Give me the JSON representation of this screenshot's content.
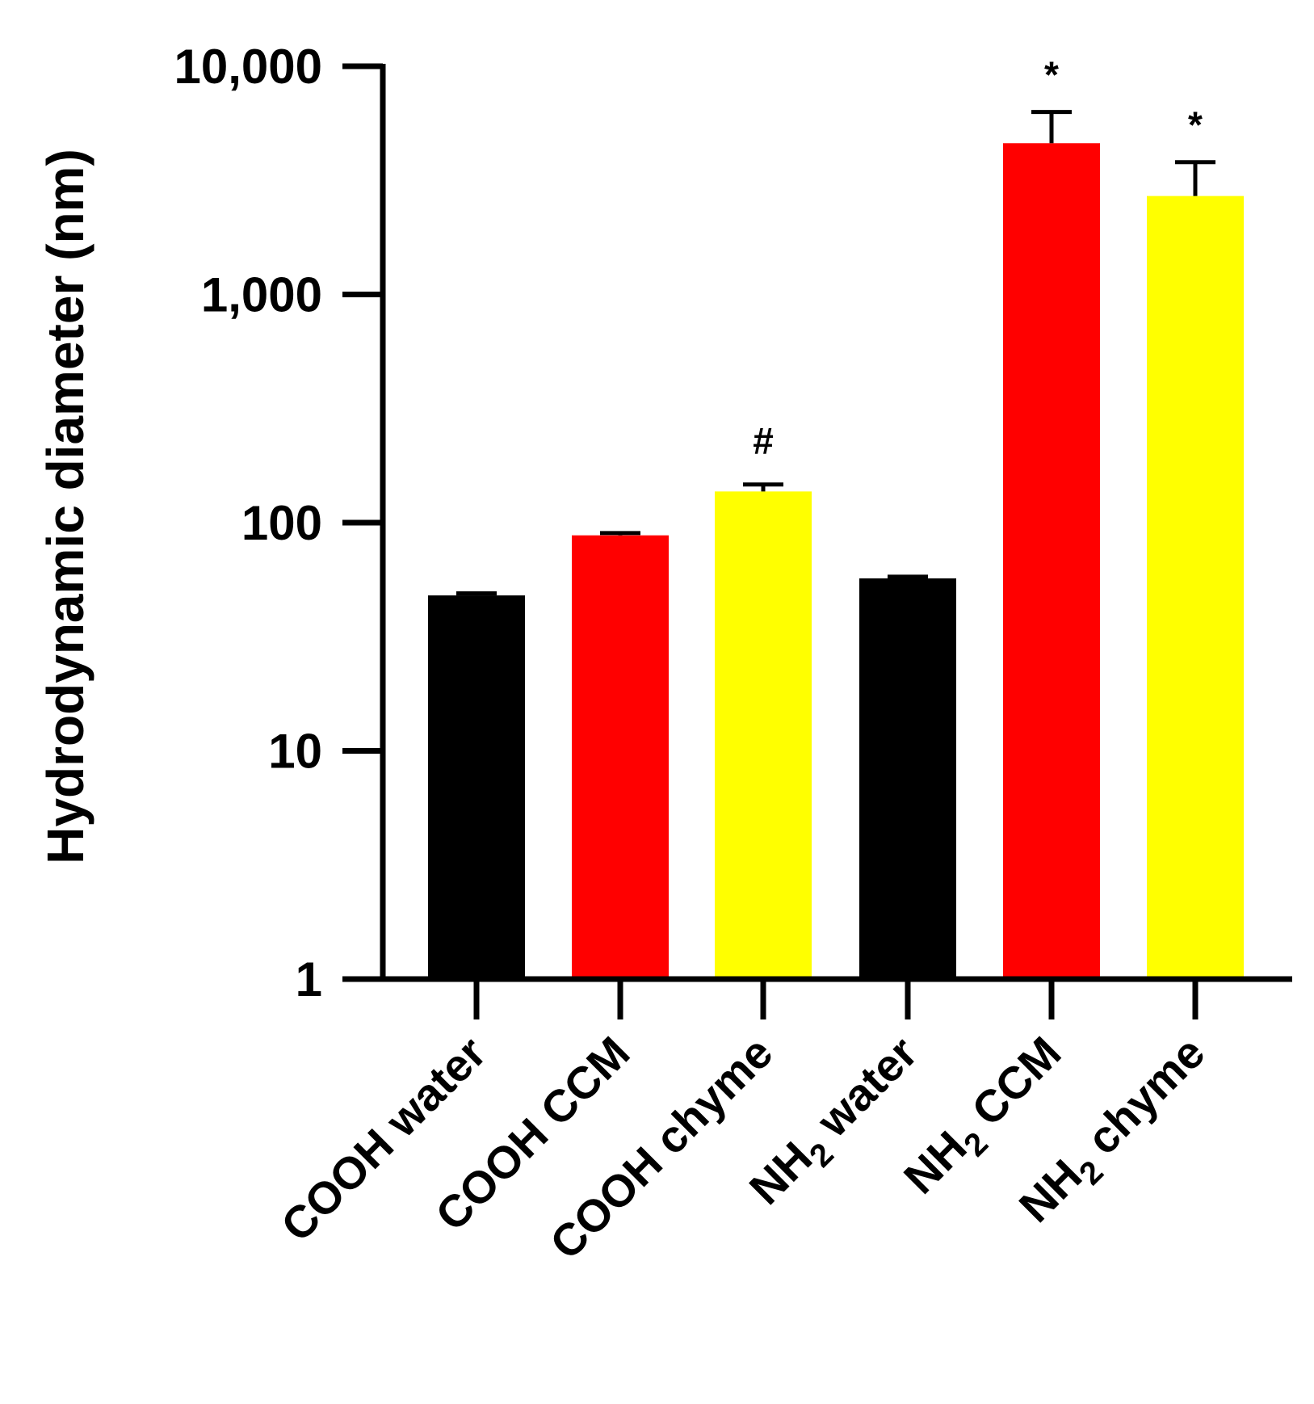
{
  "chart_data": {
    "type": "bar",
    "title": "",
    "xlabel": "",
    "ylabel": "Hydrodynamic diameter (nm)",
    "yscale": "log",
    "ylim": [
      1,
      10000
    ],
    "yticks": [
      1,
      10,
      100,
      1000,
      10000
    ],
    "ytick_labels": [
      "1",
      "10",
      "100",
      "1,000",
      "10,000"
    ],
    "grid": false,
    "legend": "none",
    "categories": [
      {
        "prefix": "COOH",
        "subscript": "",
        "suffix": " water"
      },
      {
        "prefix": "COOH",
        "subscript": "",
        "suffix": " CCM"
      },
      {
        "prefix": "COOH",
        "subscript": "",
        "suffix": " chyme"
      },
      {
        "prefix": "NH",
        "subscript": "2",
        "suffix": " water"
      },
      {
        "prefix": "NH",
        "subscript": "2",
        "suffix": " CCM"
      },
      {
        "prefix": "NH",
        "subscript": "2",
        "suffix": " chyme"
      }
    ],
    "values": [
      48,
      88,
      137,
      57,
      4600,
      2700
    ],
    "errors": [
      1,
      2,
      10,
      1,
      1700,
      1100
    ],
    "colors": [
      "#000000",
      "#ff0000",
      "#ffff00",
      "#000000",
      "#ff0000",
      "#ffff00"
    ],
    "annotations": [
      "",
      "",
      "#",
      "",
      "*",
      "*"
    ]
  }
}
